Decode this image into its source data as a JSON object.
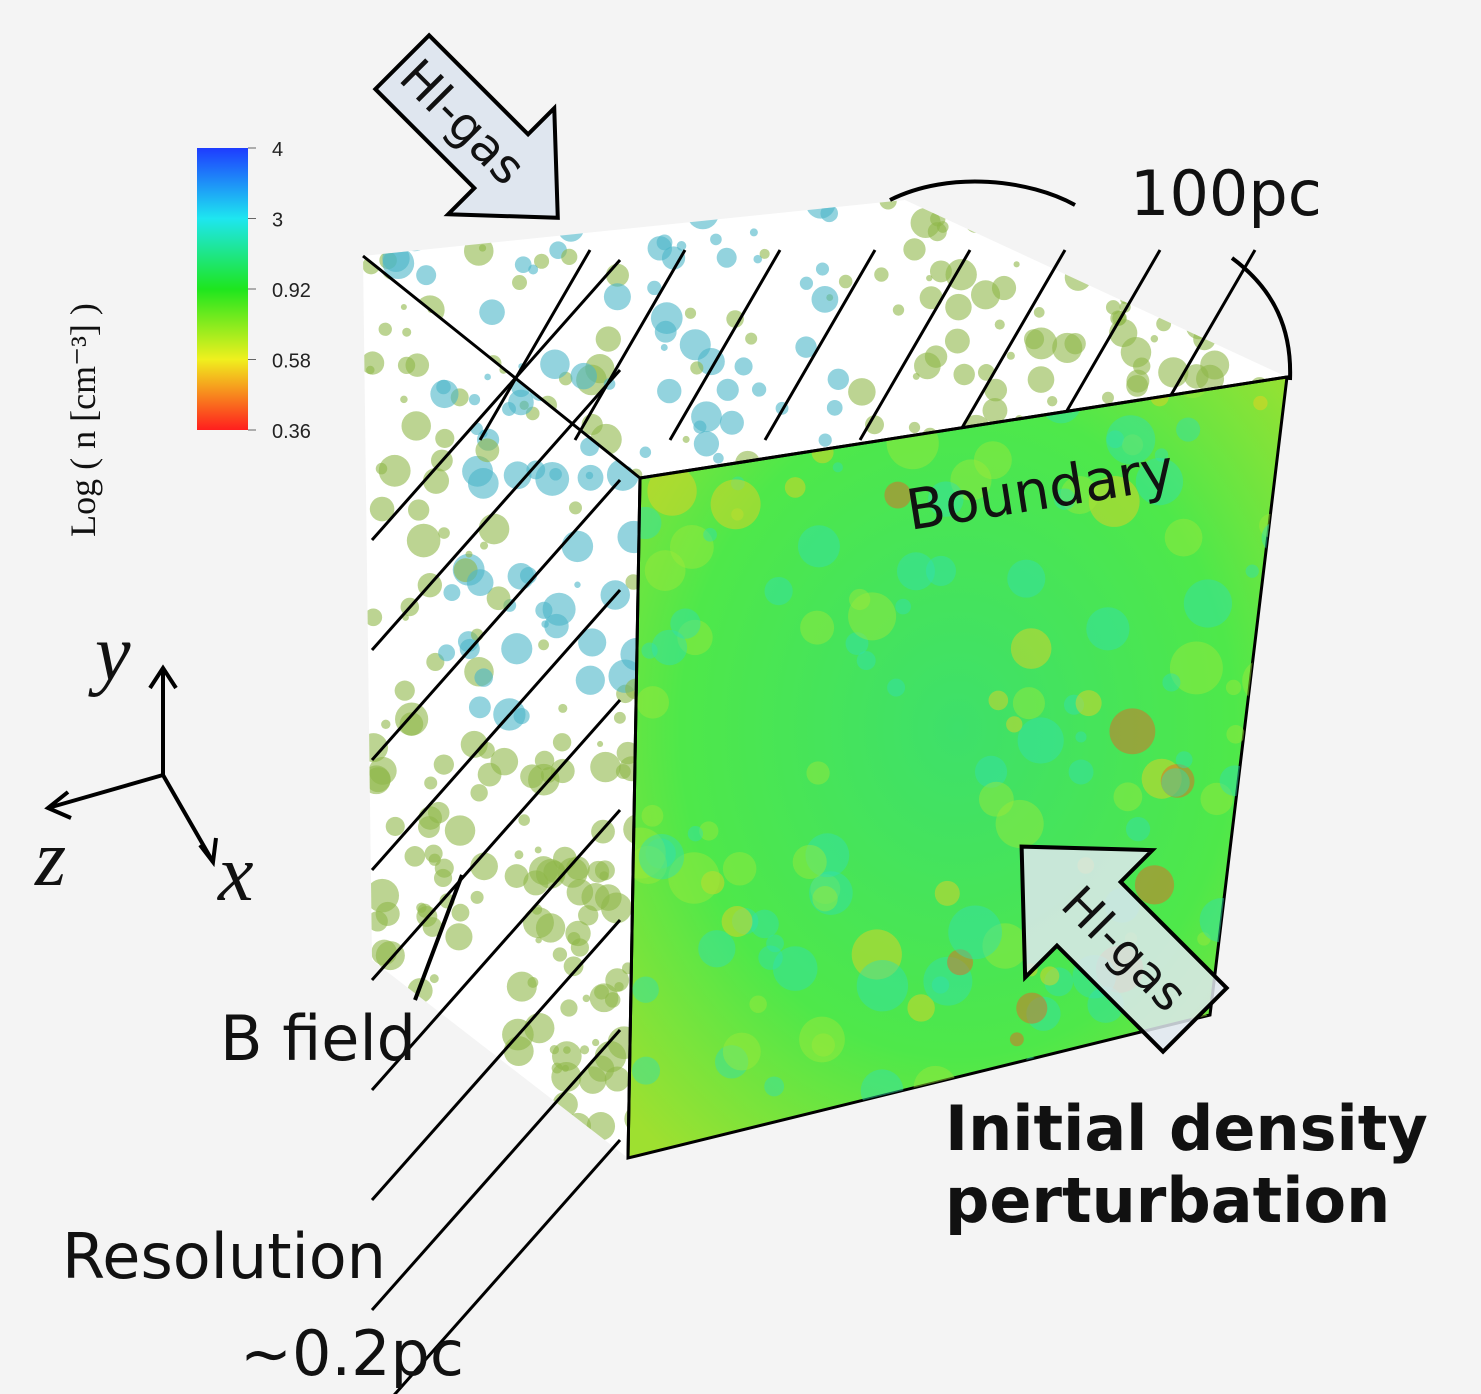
{
  "colorbar": {
    "label": "Log ( n [cm⁻³] )",
    "ticks": [
      "4",
      "3",
      "0.92",
      "0.58",
      "0.36"
    ]
  },
  "axes": {
    "y": "y",
    "z": "z",
    "x": "x"
  },
  "arrows": {
    "top": "HI-gas",
    "front": "HI-gas"
  },
  "size_label": "100pc",
  "boundary_label": "Boundary",
  "b_field_label": "B field",
  "caption": [
    "Initial density",
    "perturbation"
  ],
  "resolution": {
    "title": "Resolution",
    "value": "∼0.2pc"
  }
}
